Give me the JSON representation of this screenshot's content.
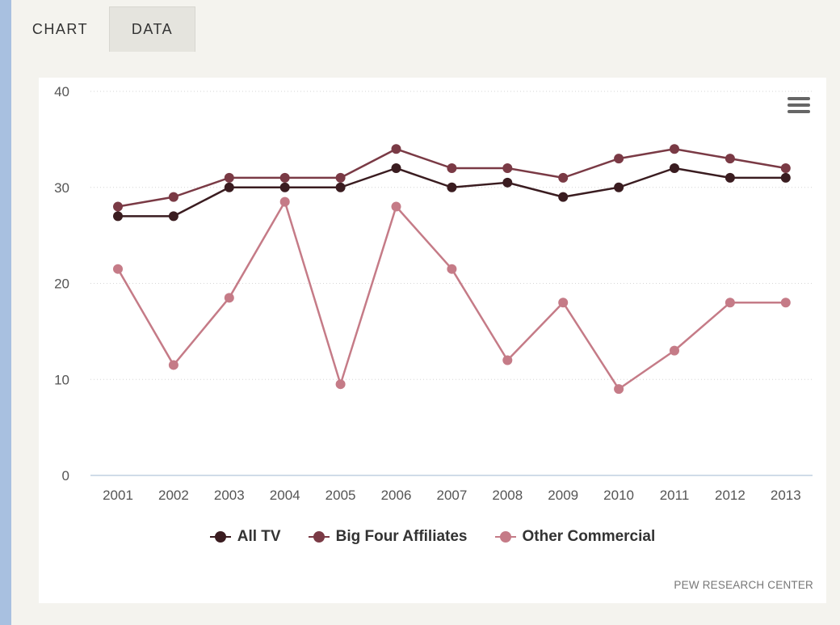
{
  "tabs": [
    {
      "label": "CHART"
    },
    {
      "label": "DATA"
    }
  ],
  "menu": {
    "icon": "hamburger-menu-icon"
  },
  "credit": "PEW RESEARCH CENTER",
  "colors": {
    "page_bg": "#f4f3ee",
    "inactive_tab_bg": "#e5e4de",
    "gridline": "#d6d6d6",
    "x_axis_line": "#c0d0e0",
    "all_tv": "#3a1c20",
    "big_four": "#7a3a45",
    "other_commercial": "#c57b87"
  },
  "chart_data": {
    "type": "line",
    "title": "",
    "xlabel": "",
    "ylabel": "",
    "x": [
      "2001",
      "2002",
      "2003",
      "2004",
      "2005",
      "2006",
      "2007",
      "2008",
      "2009",
      "2010",
      "2011",
      "2012",
      "2013"
    ],
    "ylim": [
      0,
      40
    ],
    "yticks": [
      0,
      10,
      20,
      30,
      40
    ],
    "grid": true,
    "legend_position": "bottom",
    "series": [
      {
        "name": "All TV",
        "color": "#3a1c20",
        "values": [
          27,
          27,
          30,
          30,
          30,
          32,
          30,
          30.5,
          29,
          30,
          32,
          31,
          31
        ]
      },
      {
        "name": "Big Four Affiliates",
        "color": "#7a3a45",
        "values": [
          28,
          29,
          31,
          31,
          31,
          34,
          32,
          32,
          31,
          33,
          34,
          33,
          32
        ]
      },
      {
        "name": "Other Commercial",
        "color": "#c57b87",
        "values": [
          21.5,
          11.5,
          18.5,
          28.5,
          9.5,
          28,
          21.5,
          12,
          18,
          9,
          13,
          18,
          18
        ]
      }
    ]
  }
}
